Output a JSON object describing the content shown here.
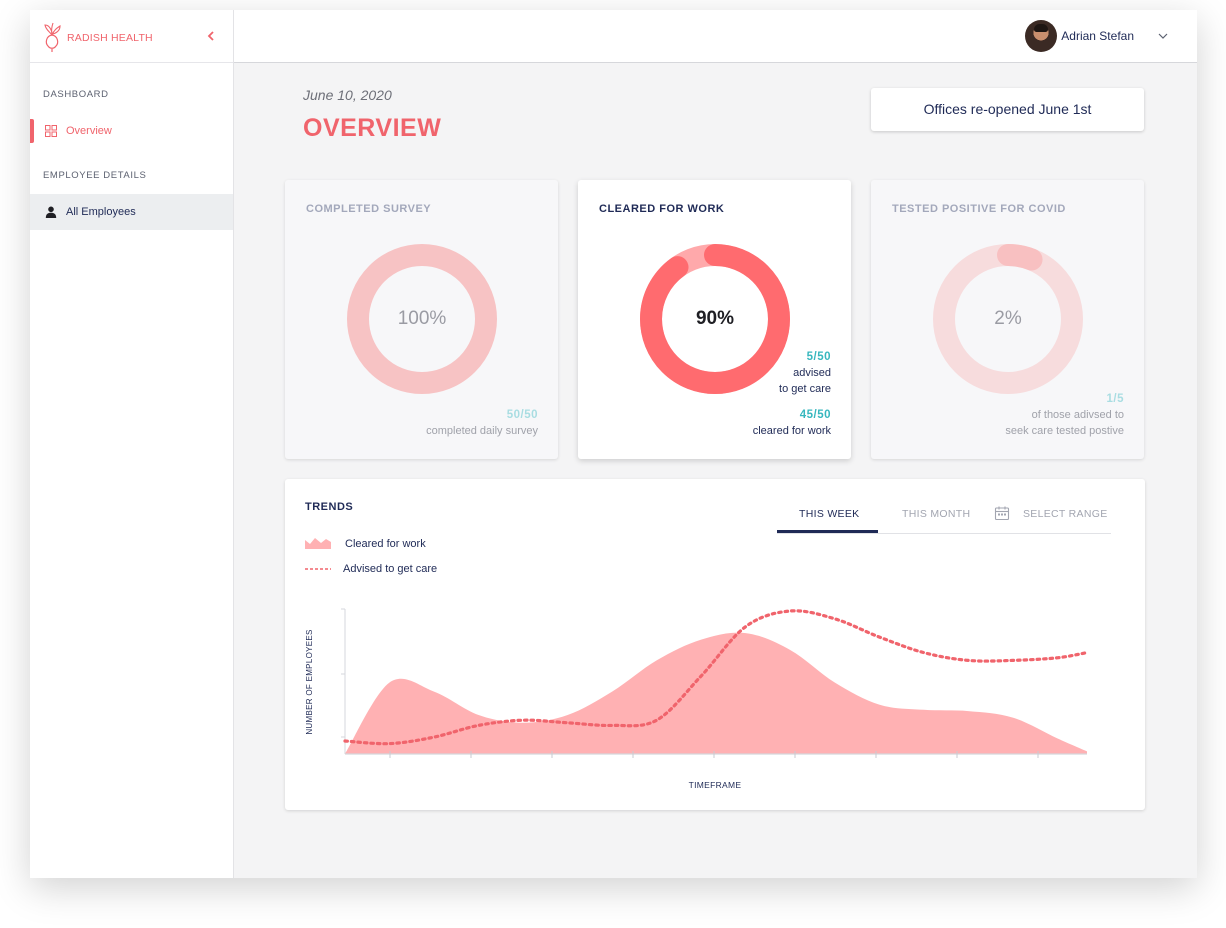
{
  "brand": {
    "name": "RADISH HEALTH",
    "accent": "#f0646c"
  },
  "sidebar": {
    "sections": [
      {
        "label": "DASHBOARD",
        "items": [
          {
            "label": "Overview",
            "icon": "grid-icon",
            "active": true
          }
        ]
      },
      {
        "label": "EMPLOYEE DETAILS",
        "items": [
          {
            "label": "All Employees",
            "icon": "person-icon",
            "active": false
          }
        ]
      }
    ]
  },
  "user": {
    "name": "Adrian Stefan"
  },
  "header": {
    "date": "June 10, 2020",
    "title": "OVERVIEW",
    "notice": "Offices re-opened June 1st"
  },
  "cards": [
    {
      "title": "COMPLETED SURVEY",
      "percent_label": "100%",
      "percent": 100,
      "stats": [
        {
          "num": "50/50",
          "desc": "completed daily survey"
        }
      ]
    },
    {
      "title": "CLEARED FOR WORK",
      "percent_label": "90%",
      "percent": 90,
      "stats": [
        {
          "num": "5/50",
          "desc_lines": [
            "advised",
            "to get care"
          ]
        },
        {
          "num": "45/50",
          "desc": "cleared for work"
        }
      ]
    },
    {
      "title": "TESTED POSITIVE FOR COVID",
      "percent_label": "2%",
      "percent": 2,
      "stats": [
        {
          "num": "1/5",
          "desc_lines": [
            "of those adivsed to",
            "seek care tested postive"
          ]
        }
      ]
    }
  ],
  "trends": {
    "title": "TRENDS",
    "tabs": {
      "week": "THIS WEEK",
      "month": "THIS MONTH",
      "range": "SELECT RANGE",
      "selected": "week"
    },
    "legend": {
      "cleared": "Cleared for work",
      "advised": "Advised to get care"
    },
    "colors": {
      "cleared": "#ffb1b3",
      "advised": "#f0646c"
    }
  },
  "chart_data": {
    "type": "area",
    "xlabel": "TIMEFRAME",
    "ylabel": "NUMBER OF EMPLOYEES",
    "series": [
      {
        "name": "Cleared for work",
        "style": "area",
        "x": [
          0,
          0.06,
          0.12,
          0.18,
          0.24,
          0.3,
          0.36,
          0.42,
          0.48,
          0.54,
          0.6,
          0.66,
          0.72,
          0.78,
          0.84,
          0.9,
          0.96,
          1.0
        ],
        "y": [
          0.0,
          0.55,
          0.48,
          0.3,
          0.24,
          0.3,
          0.48,
          0.72,
          0.88,
          0.93,
          0.8,
          0.55,
          0.38,
          0.34,
          0.33,
          0.28,
          0.12,
          0.02
        ]
      },
      {
        "name": "Advised to get care",
        "style": "dotted",
        "x": [
          0,
          0.06,
          0.12,
          0.18,
          0.24,
          0.3,
          0.36,
          0.42,
          0.48,
          0.54,
          0.6,
          0.66,
          0.72,
          0.78,
          0.84,
          0.9,
          0.96,
          1.0
        ],
        "y": [
          0.1,
          0.08,
          0.13,
          0.22,
          0.26,
          0.24,
          0.22,
          0.26,
          0.6,
          0.98,
          1.1,
          1.04,
          0.9,
          0.78,
          0.72,
          0.72,
          0.74,
          0.78
        ]
      }
    ],
    "grid": false,
    "legend_position": "top-left"
  }
}
